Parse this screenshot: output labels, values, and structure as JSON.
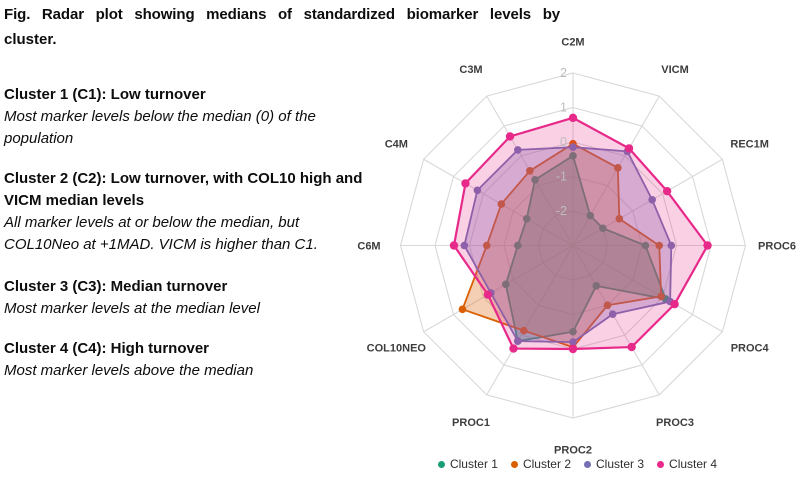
{
  "figure": {
    "caption": "Fig. Radar plot showing medians of standardized biomarker levels by cluster.",
    "caption_lines": [
      "Fig. Radar plot showing medians of standardized biomarker levels by",
      "cluster."
    ]
  },
  "clusters": [
    {
      "heading": "Cluster 1 (C1): Low turnover",
      "description": "Most marker levels below the median (0) of the population"
    },
    {
      "heading": "Cluster 2 (C2): Low turnover, with COL10 high and VICM median levels",
      "description": "All marker levels at or below the median, but COL10Neo at +1MAD. VICM is higher than C1."
    },
    {
      "heading": "Cluster 3 (C3): Median turnover",
      "description": "Most marker levels at the median level"
    },
    {
      "heading": "Cluster 4 (C4): High turnover",
      "description": "Most marker levels above the median"
    }
  ],
  "chart_data": {
    "type": "radar",
    "axes": [
      "C2M",
      "VICM",
      "REC1M",
      "PROC6",
      "PROC4",
      "PROC3",
      "PROC2",
      "PROC1",
      "COL10NEO",
      "C6M",
      "C4M",
      "C3M"
    ],
    "radial_ticks": [
      2,
      1,
      0,
      -1,
      -2
    ],
    "radial_range": [
      -3,
      2
    ],
    "grid": true,
    "legend_position": "bottom",
    "grid_color": "#d8d8d8",
    "tick_label_color": "#bdbdbd",
    "axis_label_color": "#3d3d3d",
    "series": [
      {
        "name": "Cluster 1",
        "color": "#1B9E77",
        "fill_opacity": 0.38,
        "values": [
          -0.4,
          -2.0,
          -2.0,
          -0.9,
          0.1,
          -1.65,
          -0.5,
          0.2,
          -0.75,
          -1.4,
          -1.45,
          -0.8
        ]
      },
      {
        "name": "Cluster 2",
        "color": "#D95F02",
        "fill_opacity": 0.3,
        "values": [
          -0.05,
          -0.4,
          -1.45,
          -0.5,
          -0.05,
          -1.0,
          -0.05,
          -0.15,
          0.7,
          -0.5,
          -0.6,
          -0.5
        ]
      },
      {
        "name": "Cluster 3",
        "color": "#7570B3",
        "fill_opacity": 0.33,
        "values": [
          -0.15,
          0.15,
          -0.35,
          -0.15,
          0.25,
          -0.7,
          -0.2,
          0.2,
          -0.25,
          0.15,
          0.2,
          0.2
        ]
      },
      {
        "name": "Cluster 4",
        "color": "#E7298A",
        "fill_opacity": 0.22,
        "values": [
          0.7,
          0.25,
          0.15,
          0.9,
          0.4,
          0.4,
          0.0,
          0.45,
          -0.15,
          0.45,
          0.6,
          0.65
        ]
      }
    ]
  }
}
